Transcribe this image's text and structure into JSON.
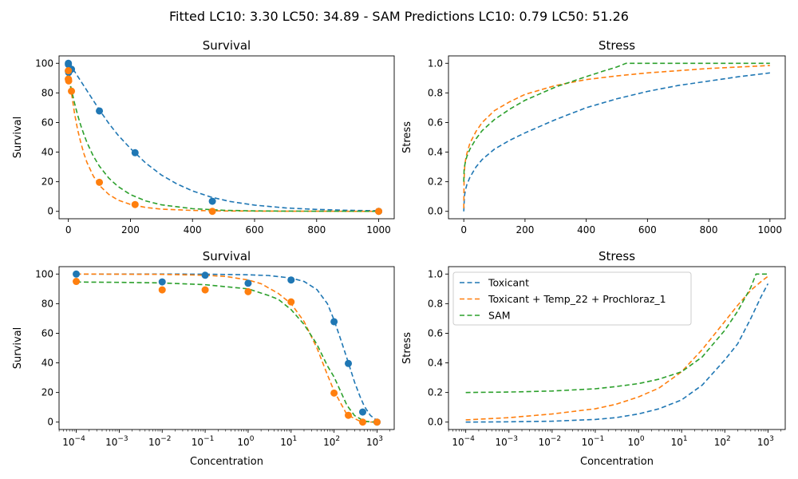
{
  "figure": {
    "suptitle": "Fitted LC10: 3.30 LC50: 34.89 - SAM Predictions LC10: 0.79 LC50: 51.26"
  },
  "colors": {
    "toxicant": "#1f77b4",
    "combined": "#ff7f0e",
    "sam": "#2ca02c"
  },
  "chart_data": [
    {
      "id": "survival-linear",
      "type": "line",
      "title": "Survival",
      "xlabel": "",
      "ylabel": "Survival",
      "xscale": "linear",
      "xlim": [
        -30,
        1050
      ],
      "ylim": [
        -5,
        105
      ],
      "xticks": [
        0,
        200,
        400,
        600,
        800,
        1000
      ],
      "xtick_labels": [
        "0",
        "200",
        "400",
        "600",
        "800",
        "1000"
      ],
      "yticks": [
        0,
        20,
        40,
        60,
        80,
        100
      ],
      "ytick_labels": [
        "0",
        "20",
        "40",
        "60",
        "80",
        "100"
      ],
      "series": [
        {
          "name": "Toxicant",
          "style": "dashed",
          "color_key": "toxicant",
          "x": [
            0.0001,
            10,
            20,
            40,
            60,
            80,
            100,
            130,
            160,
            200,
            250,
            300,
            350,
            400,
            460,
            520,
            600,
            700,
            800,
            900,
            1000
          ],
          "y": [
            100,
            97,
            94.5,
            88,
            81.5,
            75,
            68.5,
            59.5,
            51.5,
            42.5,
            32.5,
            24.5,
            18.5,
            13.8,
            9.6,
            6.7,
            4.2,
            2.3,
            1.3,
            0.7,
            0.4
          ]
        },
        {
          "name": "Toxicant + Temp_22 + Prochloraz_1",
          "style": "dashed",
          "color_key": "combined",
          "x": [
            0.0001,
            2,
            5,
            10,
            20,
            30,
            40,
            50,
            60,
            80,
            100,
            130,
            160,
            200,
            250,
            300,
            400,
            500,
            700,
            1000
          ],
          "y": [
            99.9,
            93,
            87,
            80,
            66,
            55,
            46.5,
            39,
            33,
            24,
            17.5,
            11.5,
            7.6,
            4.7,
            2.6,
            1.5,
            0.6,
            0.25,
            0.1,
            0.02
          ]
        },
        {
          "name": "SAM",
          "style": "dashed",
          "color_key": "sam",
          "x": [
            0.0001,
            1,
            5,
            10,
            20,
            30,
            40,
            50,
            60,
            80,
            100,
            130,
            160,
            200,
            250,
            300,
            400,
            500,
            600,
            700,
            1000
          ],
          "y": [
            94.6,
            92,
            87,
            82,
            73,
            65,
            58,
            52,
            46.5,
            37.5,
            30.5,
            22.5,
            16.8,
            11.3,
            7,
            4.4,
            1.8,
            0.7,
            0.3,
            0.15,
            0.02
          ]
        }
      ],
      "scatter": [
        {
          "color_key": "toxicant",
          "x": [
            0,
            0.01,
            0.1,
            1,
            10,
            100,
            215,
            464,
            1000
          ],
          "y": [
            100,
            94.7,
            99.2,
            93.8,
            96,
            67.8,
            39.6,
            6.8,
            0
          ]
        },
        {
          "color_key": "combined",
          "x": [
            0,
            0.01,
            0.1,
            1,
            10,
            100,
            215,
            464,
            1000
          ],
          "y": [
            95,
            89.3,
            89.3,
            88.1,
            81.2,
            19.6,
            4.6,
            0,
            0
          ]
        }
      ]
    },
    {
      "id": "stress-linear",
      "type": "line",
      "title": "Stress",
      "xlabel": "",
      "ylabel": "Stress",
      "xscale": "linear",
      "xlim": [
        -50,
        1050
      ],
      "ylim": [
        -0.05,
        1.05
      ],
      "xticks": [
        0,
        200,
        400,
        600,
        800,
        1000
      ],
      "xtick_labels": [
        "0",
        "200",
        "400",
        "600",
        "800",
        "1000"
      ],
      "yticks": [
        0,
        0.2,
        0.4,
        0.6,
        0.8,
        1.0
      ],
      "ytick_labels": [
        "0.0",
        "0.2",
        "0.4",
        "0.6",
        "0.8",
        "1.0"
      ],
      "series": [
        {
          "name": "Toxicant",
          "style": "dashed",
          "color_key": "toxicant",
          "x": [
            0.0001,
            2,
            5,
            10,
            20,
            40,
            60,
            100,
            150,
            200,
            300,
            400,
            500,
            600,
            700,
            800,
            900,
            1000
          ],
          "y": [
            0,
            0.1,
            0.14,
            0.18,
            0.23,
            0.3,
            0.35,
            0.42,
            0.48,
            0.53,
            0.62,
            0.7,
            0.76,
            0.81,
            0.85,
            0.88,
            0.91,
            0.935
          ]
        },
        {
          "name": "Toxicant + Temp_22 + Prochloraz_1",
          "style": "dashed",
          "color_key": "combined",
          "x": [
            0.0001,
            1,
            3,
            6,
            10,
            20,
            40,
            60,
            100,
            150,
            200,
            300,
            400,
            500,
            600,
            700,
            800,
            1000
          ],
          "y": [
            0.02,
            0.22,
            0.3,
            0.35,
            0.39,
            0.46,
            0.54,
            0.6,
            0.68,
            0.74,
            0.79,
            0.85,
            0.89,
            0.915,
            0.935,
            0.95,
            0.965,
            0.985
          ]
        },
        {
          "name": "SAM",
          "style": "dashed",
          "color_key": "sam",
          "x": [
            0.0001,
            1,
            3,
            6,
            10,
            20,
            40,
            60,
            100,
            150,
            200,
            300,
            400,
            460,
            500,
            530,
            600,
            800,
            1000
          ],
          "y": [
            0.2,
            0.28,
            0.31,
            0.34,
            0.37,
            0.42,
            0.49,
            0.545,
            0.62,
            0.69,
            0.75,
            0.84,
            0.91,
            0.95,
            0.975,
            1.0,
            1.0,
            1.0,
            1.0
          ]
        }
      ]
    },
    {
      "id": "survival-log",
      "type": "line",
      "title": "Survival",
      "xlabel": "Concentration",
      "ylabel": "Survival",
      "xscale": "log",
      "xlim_log10": [
        -4.4,
        3.4
      ],
      "ylim": [
        -5,
        105
      ],
      "xticks": [
        -4,
        -3,
        -2,
        -1,
        0,
        1,
        2,
        3
      ],
      "xtick_labels": [
        "-4",
        "-3",
        "-2",
        "-1",
        "0",
        "1",
        "2",
        "3"
      ],
      "yticks": [
        0,
        20,
        40,
        60,
        80,
        100
      ],
      "ytick_labels": [
        "0",
        "20",
        "40",
        "60",
        "80",
        "100"
      ],
      "series": [
        {
          "name": "Toxicant",
          "style": "dashed",
          "color_key": "toxicant",
          "x": [
            0.0001,
            0.001,
            0.01,
            0.1,
            1,
            3,
            10,
            20,
            40,
            70,
            100,
            150,
            200,
            300,
            400,
            500,
            700,
            1000
          ],
          "y": [
            100,
            100,
            100,
            99.9,
            99.5,
            99,
            97.3,
            95,
            89.5,
            80,
            69,
            54,
            43,
            27,
            17.5,
            11,
            4.5,
            1
          ]
        },
        {
          "name": "Toxicant + Temp_22 + Prochloraz_1",
          "style": "dashed",
          "color_key": "combined",
          "x": [
            0.0001,
            0.001,
            0.01,
            0.1,
            0.3,
            1,
            2,
            5,
            10,
            20,
            40,
            70,
            100,
            200,
            400,
            700,
            1000
          ],
          "y": [
            100,
            99.9,
            99.8,
            99.2,
            98.4,
            96,
            93.5,
            87,
            80,
            68,
            50,
            32,
            21,
            5,
            0.6,
            0.1,
            0.02
          ]
        },
        {
          "name": "SAM",
          "style": "dashed",
          "color_key": "sam",
          "x": [
            0.0001,
            0.001,
            0.01,
            0.1,
            1,
            3,
            5,
            10,
            20,
            40,
            70,
            100,
            200,
            300,
            500,
            700,
            1000
          ],
          "y": [
            94.6,
            94.4,
            94,
            92.8,
            90,
            85.5,
            83,
            76,
            66,
            52.5,
            38,
            30.5,
            11.3,
            4.4,
            0.7,
            0.15,
            0.02
          ]
        }
      ],
      "scatter": [
        {
          "color_key": "toxicant",
          "x": [
            0.0001,
            0.01,
            0.1,
            1,
            10,
            100,
            215,
            464,
            1000
          ],
          "y": [
            100,
            94.7,
            99.2,
            93.8,
            96,
            67.8,
            39.6,
            6.8,
            0
          ]
        },
        {
          "color_key": "combined",
          "x": [
            0.0001,
            0.01,
            0.1,
            1,
            10,
            100,
            215,
            464,
            1000
          ],
          "y": [
            95,
            89.3,
            89.3,
            88.1,
            81.2,
            19.6,
            4.6,
            0,
            0
          ]
        }
      ]
    },
    {
      "id": "stress-log",
      "type": "line",
      "title": "Stress",
      "xlabel": "Concentration",
      "ylabel": "Stress",
      "xscale": "log",
      "xlim_log10": [
        -4.4,
        3.4
      ],
      "ylim": [
        -0.05,
        1.05
      ],
      "xticks": [
        -4,
        -3,
        -2,
        -1,
        0,
        1,
        2,
        3
      ],
      "xtick_labels": [
        "-4",
        "-3",
        "-2",
        "-1",
        "0",
        "1",
        "2",
        "3"
      ],
      "yticks": [
        0,
        0.2,
        0.4,
        0.6,
        0.8,
        1.0
      ],
      "ytick_labels": [
        "0.0",
        "0.2",
        "0.4",
        "0.6",
        "0.8",
        "1.0"
      ],
      "legend": {
        "placement": "upper-left",
        "entries": [
          "Toxicant",
          "Toxicant + Temp_22 + Prochloraz_1",
          "SAM"
        ]
      },
      "series": [
        {
          "name": "Toxicant",
          "style": "dashed",
          "color_key": "toxicant",
          "x": [
            0.0001,
            0.001,
            0.01,
            0.1,
            0.3,
            1,
            3,
            10,
            30,
            100,
            200,
            400,
            700,
            1000
          ],
          "y": [
            0,
            0.002,
            0.006,
            0.018,
            0.03,
            0.055,
            0.09,
            0.15,
            0.25,
            0.42,
            0.53,
            0.7,
            0.85,
            0.935
          ]
        },
        {
          "name": "Toxicant + Temp_22 + Prochloraz_1",
          "style": "dashed",
          "color_key": "combined",
          "x": [
            0.0001,
            0.001,
            0.01,
            0.1,
            0.3,
            1,
            3,
            10,
            30,
            100,
            200,
            400,
            700,
            1000
          ],
          "y": [
            0.015,
            0.03,
            0.055,
            0.09,
            0.12,
            0.17,
            0.23,
            0.34,
            0.49,
            0.68,
            0.79,
            0.89,
            0.95,
            0.985
          ]
        },
        {
          "name": "SAM",
          "style": "dashed",
          "color_key": "sam",
          "x": [
            0.0001,
            0.001,
            0.01,
            0.1,
            0.3,
            1,
            3,
            10,
            30,
            100,
            200,
            400,
            530,
            1000
          ],
          "y": [
            0.2,
            0.203,
            0.21,
            0.225,
            0.24,
            0.26,
            0.29,
            0.34,
            0.44,
            0.62,
            0.75,
            0.91,
            1.0,
            1.0
          ]
        }
      ]
    }
  ]
}
